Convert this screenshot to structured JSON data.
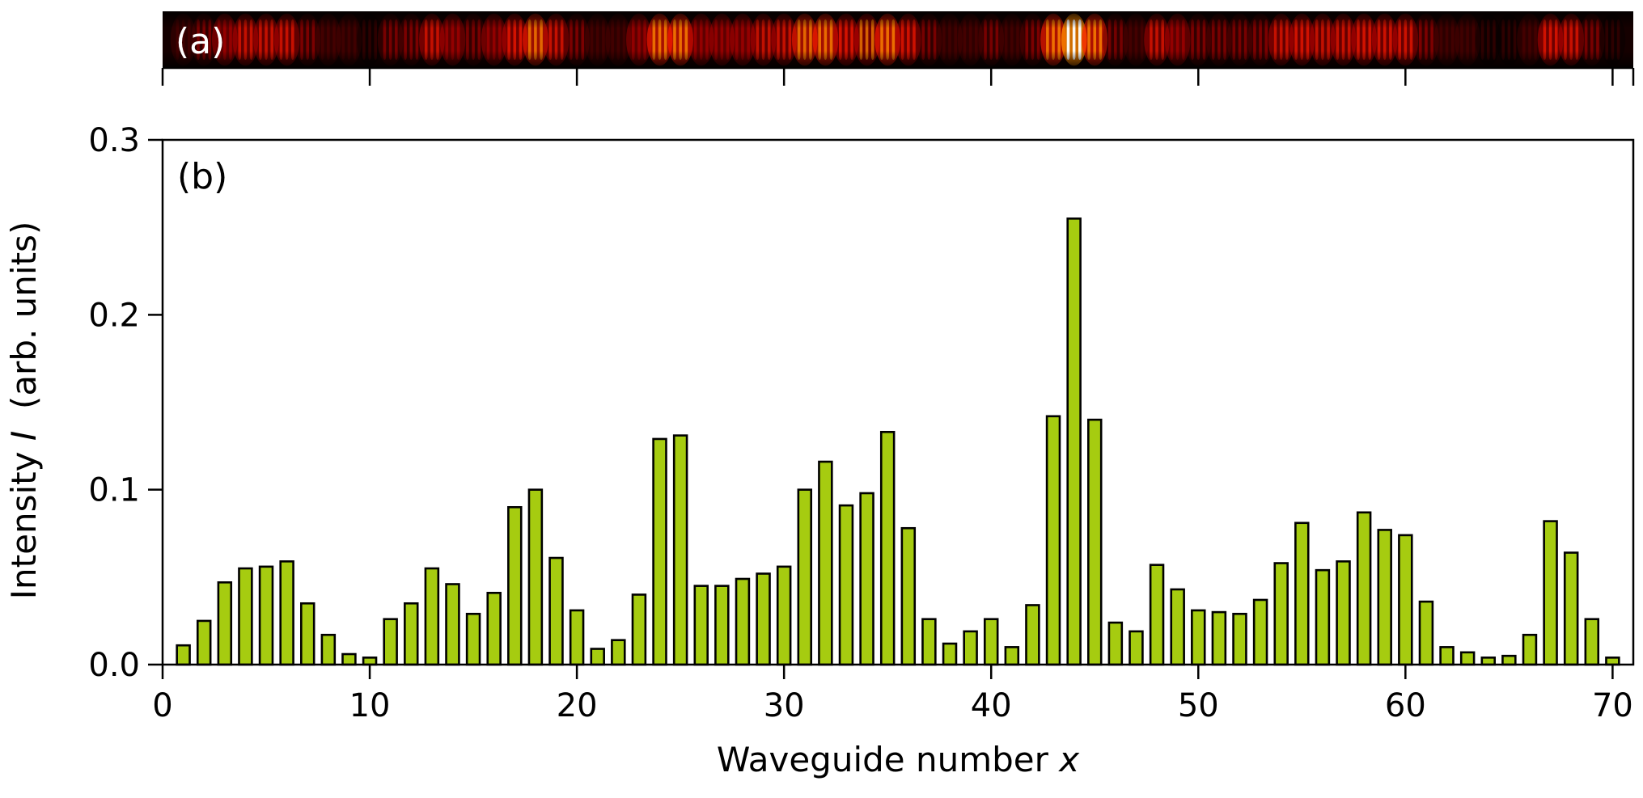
{
  "chart_data": [
    {
      "panel_label": "(a)",
      "type": "heatmap",
      "description_source": "intensity image strip aligned with waveguide axis",
      "colormap": [
        "#000000",
        "#5a0000",
        "#b80000",
        "#ff1a00",
        "#ff8a00",
        "#ffff80",
        "#ffffff"
      ],
      "xlim": [
        0,
        71
      ],
      "x_ticks": [
        0,
        10,
        20,
        30,
        40,
        50,
        60,
        70
      ]
    },
    {
      "panel_label": "(b)",
      "type": "bar",
      "xlabel_main": "Waveguide number ",
      "xlabel_var": "x",
      "ylabel_main": "Intensity ",
      "ylabel_var": "I",
      "ylabel_unit": "  (arb. units)",
      "xlim": [
        0,
        71
      ],
      "ylim": [
        0,
        0.3
      ],
      "x_ticks": [
        0,
        10,
        20,
        30,
        40,
        50,
        60,
        70
      ],
      "y_ticks": [
        0.0,
        0.1,
        0.2,
        0.3
      ],
      "y_tick_labels": [
        "0.0",
        "0.1",
        "0.2",
        "0.3"
      ],
      "bar_color": "#a6cc10",
      "edge_color": "#000000",
      "x": [
        1,
        2,
        3,
        4,
        5,
        6,
        7,
        8,
        9,
        10,
        11,
        12,
        13,
        14,
        15,
        16,
        17,
        18,
        19,
        20,
        21,
        22,
        23,
        24,
        25,
        26,
        27,
        28,
        29,
        30,
        31,
        32,
        33,
        34,
        35,
        36,
        37,
        38,
        39,
        40,
        41,
        42,
        43,
        44,
        45,
        46,
        47,
        48,
        49,
        50,
        51,
        52,
        53,
        54,
        55,
        56,
        57,
        58,
        59,
        60,
        61,
        62,
        63,
        64,
        65,
        66,
        67,
        68,
        69,
        70
      ],
      "values": [
        0.011,
        0.025,
        0.047,
        0.055,
        0.056,
        0.059,
        0.035,
        0.017,
        0.006,
        0.004,
        0.026,
        0.035,
        0.055,
        0.046,
        0.029,
        0.041,
        0.09,
        0.1,
        0.061,
        0.031,
        0.009,
        0.014,
        0.04,
        0.129,
        0.131,
        0.045,
        0.045,
        0.049,
        0.052,
        0.056,
        0.1,
        0.116,
        0.091,
        0.098,
        0.133,
        0.078,
        0.026,
        0.012,
        0.019,
        0.026,
        0.01,
        0.034,
        0.142,
        0.255,
        0.14,
        0.024,
        0.019,
        0.057,
        0.043,
        0.031,
        0.03,
        0.029,
        0.037,
        0.058,
        0.081,
        0.054,
        0.059,
        0.087,
        0.077,
        0.074,
        0.036,
        0.01,
        0.007,
        0.004,
        0.005,
        0.017,
        0.082,
        0.064,
        0.026,
        0.004
      ],
      "grid": false
    }
  ]
}
